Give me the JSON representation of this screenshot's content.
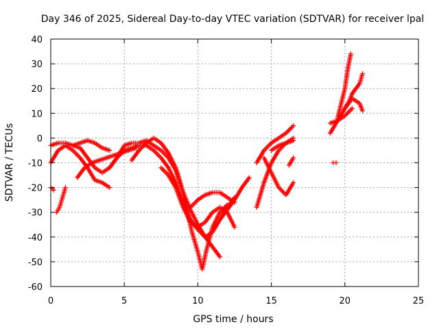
{
  "chart_data": {
    "type": "scatter",
    "title": "Day 346 of 2025, Sidereal Day-to-day VTEC variation (SDTVAR) for receiver lpal",
    "xlabel": "GPS time / hours",
    "ylabel": "SDTVAR / TECUs",
    "xlim": [
      0,
      25
    ],
    "ylim": [
      -60,
      40
    ],
    "xticks": [
      0,
      5,
      10,
      15,
      20,
      25
    ],
    "yticks": [
      -60,
      -50,
      -40,
      -30,
      -20,
      -10,
      0,
      10,
      20,
      30,
      40
    ],
    "x_tick_labels": [
      "0",
      "5",
      "10",
      "15",
      "20",
      "25"
    ],
    "y_tick_labels": [
      "-60",
      "-50",
      "-40",
      "-30",
      "-20",
      "-10",
      "0",
      "10",
      "20",
      "30",
      "40"
    ],
    "grid": true,
    "legend": "none",
    "marker": "plus",
    "color": "#ff0000",
    "series": [
      {
        "x": [
          0.0,
          0.5,
          1.0,
          1.5,
          2.0,
          2.5,
          3.0,
          3.5,
          4.0,
          4.5,
          5.0,
          5.5,
          6.0,
          6.5,
          7.0,
          7.5,
          8.0,
          8.5,
          9.0,
          9.3,
          9.6,
          10.0,
          10.3,
          10.6,
          11.0,
          11.5,
          12.0
        ],
        "y": [
          -3,
          -2,
          -2,
          -3,
          -4,
          -8,
          -12,
          -14,
          -12,
          -8,
          -3,
          -2,
          -2,
          -1,
          -3,
          -5,
          -8,
          -13,
          -22,
          -30,
          -38,
          -46,
          -53,
          -45,
          -36,
          -30,
          -27
        ]
      },
      {
        "x": [
          0.0,
          0.5,
          1.0,
          1.5,
          2.0,
          2.5,
          3.0,
          3.5,
          4.0
        ],
        "y": [
          -10,
          -5,
          -3,
          -5,
          -8,
          -12,
          -17,
          -18,
          -20
        ]
      },
      {
        "x": [
          1.5,
          2.0,
          2.5,
          3.0,
          3.5,
          4.0
        ],
        "y": [
          -3,
          -2,
          -1,
          -2,
          -4,
          -5
        ]
      },
      {
        "x": [
          0.4,
          0.6,
          0.8,
          1.0
        ],
        "y": [
          -30,
          -28,
          -24,
          -20
        ]
      },
      {
        "x": [
          0.0,
          0.2
        ],
        "y": [
          -20,
          -21
        ]
      },
      {
        "x": [
          1.8,
          2.3,
          2.8,
          3.3,
          3.8,
          4.3,
          4.8,
          5.3,
          5.8
        ],
        "y": [
          -16,
          -12,
          -10,
          -9,
          -8,
          -7,
          -6,
          -5,
          -4
        ]
      },
      {
        "x": [
          4.0,
          4.5,
          5.0,
          5.5,
          6.0,
          6.5,
          7.0,
          7.5,
          8.0,
          8.5,
          9.0,
          9.5,
          10.0,
          10.5,
          11.0,
          11.5,
          12.0,
          12.5
        ],
        "y": [
          -12,
          -8,
          -5,
          -4,
          -3,
          -3,
          -5,
          -8,
          -12,
          -18,
          -26,
          -33,
          -37,
          -40,
          -38,
          -33,
          -28,
          -24
        ]
      },
      {
        "x": [
          5.5,
          6.0,
          6.5,
          7.0,
          7.5,
          8.0,
          8.5,
          9.0,
          9.5,
          10.0,
          10.5,
          11.0,
          11.5
        ],
        "y": [
          -9,
          -5,
          -2,
          0,
          -2,
          -6,
          -12,
          -22,
          -29,
          -35,
          -40,
          -44,
          -48
        ]
      },
      {
        "x": [
          7.5,
          8.0,
          8.5,
          9.0,
          9.5,
          10.0,
          10.5,
          11.0,
          11.5,
          12.0,
          12.5
        ],
        "y": [
          -12,
          -15,
          -20,
          -28,
          -34,
          -36,
          -34,
          -30,
          -28,
          -30,
          -36
        ]
      },
      {
        "x": [
          9.5,
          10.0,
          10.5,
          11.0,
          11.5,
          12.0,
          12.5
        ],
        "y": [
          -28,
          -25,
          -23,
          -22,
          -22,
          -24,
          -26
        ]
      },
      {
        "x": [
          11.5,
          12.0,
          12.5,
          13.0,
          13.5
        ],
        "y": [
          -33,
          -29,
          -25,
          -20,
          -16
        ]
      },
      {
        "x": [
          14.0,
          14.5,
          15.0,
          15.5,
          16.0,
          16.5
        ],
        "y": [
          -10,
          -5,
          -2,
          0,
          2,
          5
        ]
      },
      {
        "x": [
          14.5,
          15.0,
          15.5,
          16.0,
          16.5
        ],
        "y": [
          -8,
          -14,
          -20,
          -23,
          -18
        ]
      },
      {
        "x": [
          14.0,
          14.5,
          15.0,
          15.5,
          16.0,
          16.5
        ],
        "y": [
          -28,
          -18,
          -10,
          -5,
          -2,
          -1
        ]
      },
      {
        "x": [
          15.0,
          15.5,
          16.0,
          16.5
        ],
        "y": [
          -5,
          -3,
          -2,
          0
        ]
      },
      {
        "x": [
          16.2,
          16.5
        ],
        "y": [
          -11,
          -8
        ]
      },
      {
        "x": [
          19.0,
          19.5,
          20.0,
          20.3,
          20.5,
          21.0,
          21.2
        ],
        "y": [
          2,
          7,
          12,
          15,
          18,
          22,
          26
        ]
      },
      {
        "x": [
          19.5,
          20.0,
          20.2,
          20.4
        ],
        "y": [
          8,
          20,
          28,
          34
        ]
      },
      {
        "x": [
          20.0,
          20.5,
          21.0,
          21.2
        ],
        "y": [
          12,
          16,
          14,
          11
        ]
      },
      {
        "x": [
          19.0,
          19.5,
          20.0,
          20.5
        ],
        "y": [
          6,
          7,
          9,
          12
        ]
      },
      {
        "x": [
          19.2,
          19.4
        ],
        "y": [
          -10,
          -10
        ]
      }
    ]
  }
}
